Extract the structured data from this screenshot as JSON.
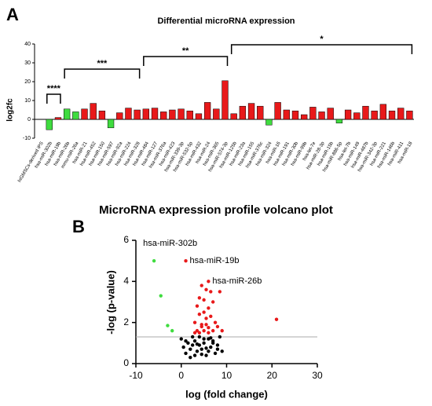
{
  "chart_data": [
    {
      "type": "bar",
      "panel": "A",
      "title": "Differential microRNA expression",
      "y_label": "log2fc",
      "categories": [
        "hiGMSCs-derived iPS",
        "hsa-miR-302b",
        "hsa-miR-19b",
        "hsa-miR-26b",
        "mmu-miR-26a",
        "hsa-miR-21",
        "hsa-miR-452",
        "hsa-miR-150",
        "hsa-miR-597",
        "hsa-miR-92a",
        "hsa-miR-224",
        "hsa-miR-328",
        "hsa-miR-484",
        "hsa-miR-127",
        "hsa-miR-376a",
        "hsa-miR-423",
        "hsa-miR-339-3p",
        "hsa-miR-532-5p",
        "hsa-miR-432",
        "hsa-miR-24",
        "hsa-miR-365",
        "hsa-miR-574-3p",
        "hsa-miR-125b",
        "hsa-miR-23a",
        "hsa-miR-155",
        "hsa-miR-376c",
        "hsa-miR-324",
        "hsa-miR-16",
        "hsa-miR-191",
        "hsa-miR-30b",
        "hsa-miR-99b",
        "hsa-let-7e",
        "hsa-miR-28-3p",
        "hsa-miR-15b",
        "hsa-miR-886-5p",
        "hsa-let-7b",
        "hsa-miR-149",
        "hsa-miR-487b",
        "hsa-miR-342-3p",
        "hsa-miR-221",
        "hsa-miR-146b",
        "hsa-miR-411",
        "hsa-miR-18"
      ],
      "values": [
        0,
        -5.5,
        1,
        5.5,
        4,
        5.5,
        8.5,
        4.5,
        -4.5,
        3.5,
        6,
        5,
        5.5,
        6,
        4,
        5,
        5.5,
        4.5,
        3,
        9,
        5.5,
        20.5,
        3,
        7,
        8.5,
        7,
        -3,
        9,
        5,
        4.5,
        2.5,
        6.5,
        4,
        6,
        -2,
        5,
        3.5,
        7,
        4.5,
        8,
        4.5,
        6,
        4.5
      ],
      "colors": [
        "#e8191a",
        "#3fdc3f",
        "#e8191a",
        "#3fdc3f",
        "#3fdc3f",
        "#e8191a",
        "#e8191a",
        "#e8191a",
        "#3fdc3f",
        "#e8191a",
        "#e8191a",
        "#e8191a",
        "#e8191a",
        "#e8191a",
        "#e8191a",
        "#e8191a",
        "#e8191a",
        "#e8191a",
        "#e8191a",
        "#e8191a",
        "#e8191a",
        "#e8191a",
        "#e8191a",
        "#e8191a",
        "#e8191a",
        "#e8191a",
        "#3fdc3f",
        "#e8191a",
        "#e8191a",
        "#e8191a",
        "#e8191a",
        "#e8191a",
        "#e8191a",
        "#e8191a",
        "#3fdc3f",
        "#e8191a",
        "#e8191a",
        "#e8191a",
        "#e8191a",
        "#e8191a",
        "#e8191a",
        "#e8191a",
        "#e8191a"
      ],
      "ylim": [
        -10,
        40
      ],
      "yticks": [
        -10,
        0,
        10,
        20,
        30,
        40
      ],
      "brackets": [
        {
          "label": "****",
          "start": "hsa-miR-302b",
          "end": "hsa-miR-19b"
        },
        {
          "label": "***",
          "start": "hsa-miR-26b",
          "end": "hsa-miR-328"
        },
        {
          "label": "**",
          "start": "hsa-miR-484",
          "end": "hsa-miR-574-3p"
        },
        {
          "label": "*",
          "start": "hsa-miR-125b",
          "end": "hsa-miR-18"
        }
      ]
    },
    {
      "type": "scatter",
      "panel": "B",
      "title": "MicroRNA expression profile volcano plot",
      "x_label": "log (fold change)",
      "y_label": "-log (p-value)",
      "xlim": [
        -10,
        30
      ],
      "xticks": [
        -10,
        0,
        10,
        20,
        30
      ],
      "ylim": [
        0,
        6
      ],
      "yticks": [
        0,
        2,
        4,
        6
      ],
      "threshold": 1.3,
      "series": [
        {
          "color": "#3fdc3f",
          "x": [
            -6,
            -4.5,
            -3,
            -2
          ],
          "values": [
            5,
            3.3,
            1.85,
            1.6
          ]
        },
        {
          "color": "#e8191a",
          "x": [
            1,
            6,
            21,
            4.5,
            5.5,
            6.5,
            4,
            5,
            7,
            3.5,
            6,
            8.5,
            5,
            4,
            6.5,
            3,
            5.5,
            7.5,
            4.5,
            6,
            8,
            3.5,
            5,
            7,
            4,
            6,
            9,
            5.5,
            4.5,
            3
          ],
          "values": [
            5,
            4,
            2.15,
            3.8,
            3.6,
            3.5,
            3.2,
            3.1,
            3,
            2.8,
            2.7,
            3.5,
            2.5,
            2.4,
            2.3,
            2,
            1.9,
            2,
            1.8,
            1.75,
            1.8,
            1.6,
            1.6,
            1.6,
            1.5,
            1.5,
            1.6,
            2.2,
            1.9,
            1.5
          ]
        },
        {
          "color": "#000000",
          "x": [
            0,
            0.5,
            1,
            1.5,
            2,
            2.5,
            3,
            3.5,
            4,
            4.5,
            5,
            5.5,
            6,
            6.5,
            7,
            7.5,
            8,
            8.5,
            9,
            1,
            2,
            3,
            4,
            5,
            6,
            7,
            8,
            2.5,
            4.5,
            6.5,
            5.5,
            3.5
          ],
          "values": [
            1.2,
            0.8,
            0.5,
            1.0,
            0.3,
            0.9,
            1.1,
            0.6,
            1.3,
            0.7,
            1.0,
            0.4,
            1.2,
            0.8,
            1.1,
            0.5,
            0.9,
            1.3,
            0.6,
            1.1,
            0.7,
            0.4,
            0.9,
            1.2,
            0.6,
            1.0,
            0.7,
            1.3,
            0.45,
            1.25,
            0.75,
            0.95
          ]
        }
      ],
      "annotations": [
        {
          "text": "hsa-miR-302b",
          "x": -6,
          "y": 5
        },
        {
          "text": "hsa-miR-19b",
          "x": 1,
          "y": 5
        },
        {
          "text": "hsa-miR-26b",
          "x": 6,
          "y": 4
        }
      ]
    }
  ]
}
